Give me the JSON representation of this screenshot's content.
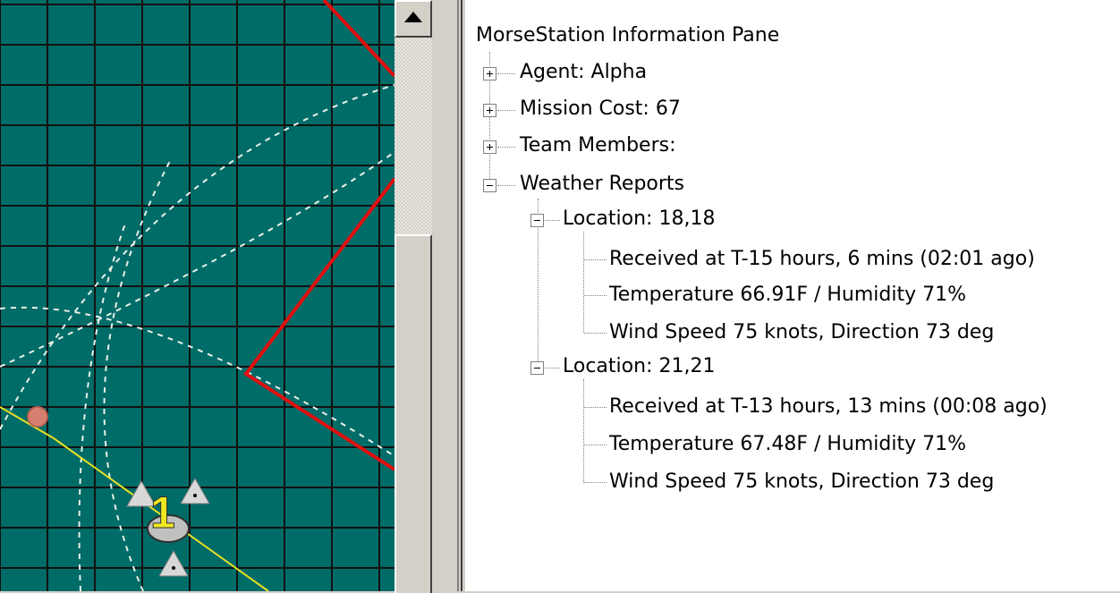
{
  "tree_pane": {
    "root_label": "MorseStation Information Pane",
    "nodes": [
      {
        "label": "Agent: Alpha",
        "state": "collapsed"
      },
      {
        "label": "Mission Cost: 67",
        "state": "collapsed"
      },
      {
        "label": "Team Members:",
        "state": "collapsed"
      },
      {
        "label": "Weather Reports",
        "state": "expanded",
        "locations": [
          {
            "label": "Location: 18,18",
            "state": "expanded",
            "details": [
              "Received at T-15 hours, 6 mins (02:01 ago)",
              "Temperature 66.91F / Humidity 71%",
              "Wind Speed 75 knots, Direction 73 deg"
            ]
          },
          {
            "label": "Location: 21,21",
            "state": "expanded",
            "details": [
              "Received at T-13 hours, 13 mins (00:08 ago)",
              "Temperature 67.48F / Humidity 71%",
              "Wind Speed 75 knots, Direction 73 deg"
            ]
          }
        ]
      }
    ]
  },
  "map": {
    "unit_marker_label": "1",
    "colors": {
      "background": "#006c68",
      "grid": "#111111",
      "boundary": "#e01010",
      "range_rings": "#e8f0e8",
      "path": "#e8e020",
      "waypoint": "#d88070"
    }
  },
  "icons": {
    "expand": "plus-box-icon",
    "collapse": "minus-box-icon",
    "scroll_up": "up-arrow-icon",
    "unit": "triangle-icon"
  }
}
